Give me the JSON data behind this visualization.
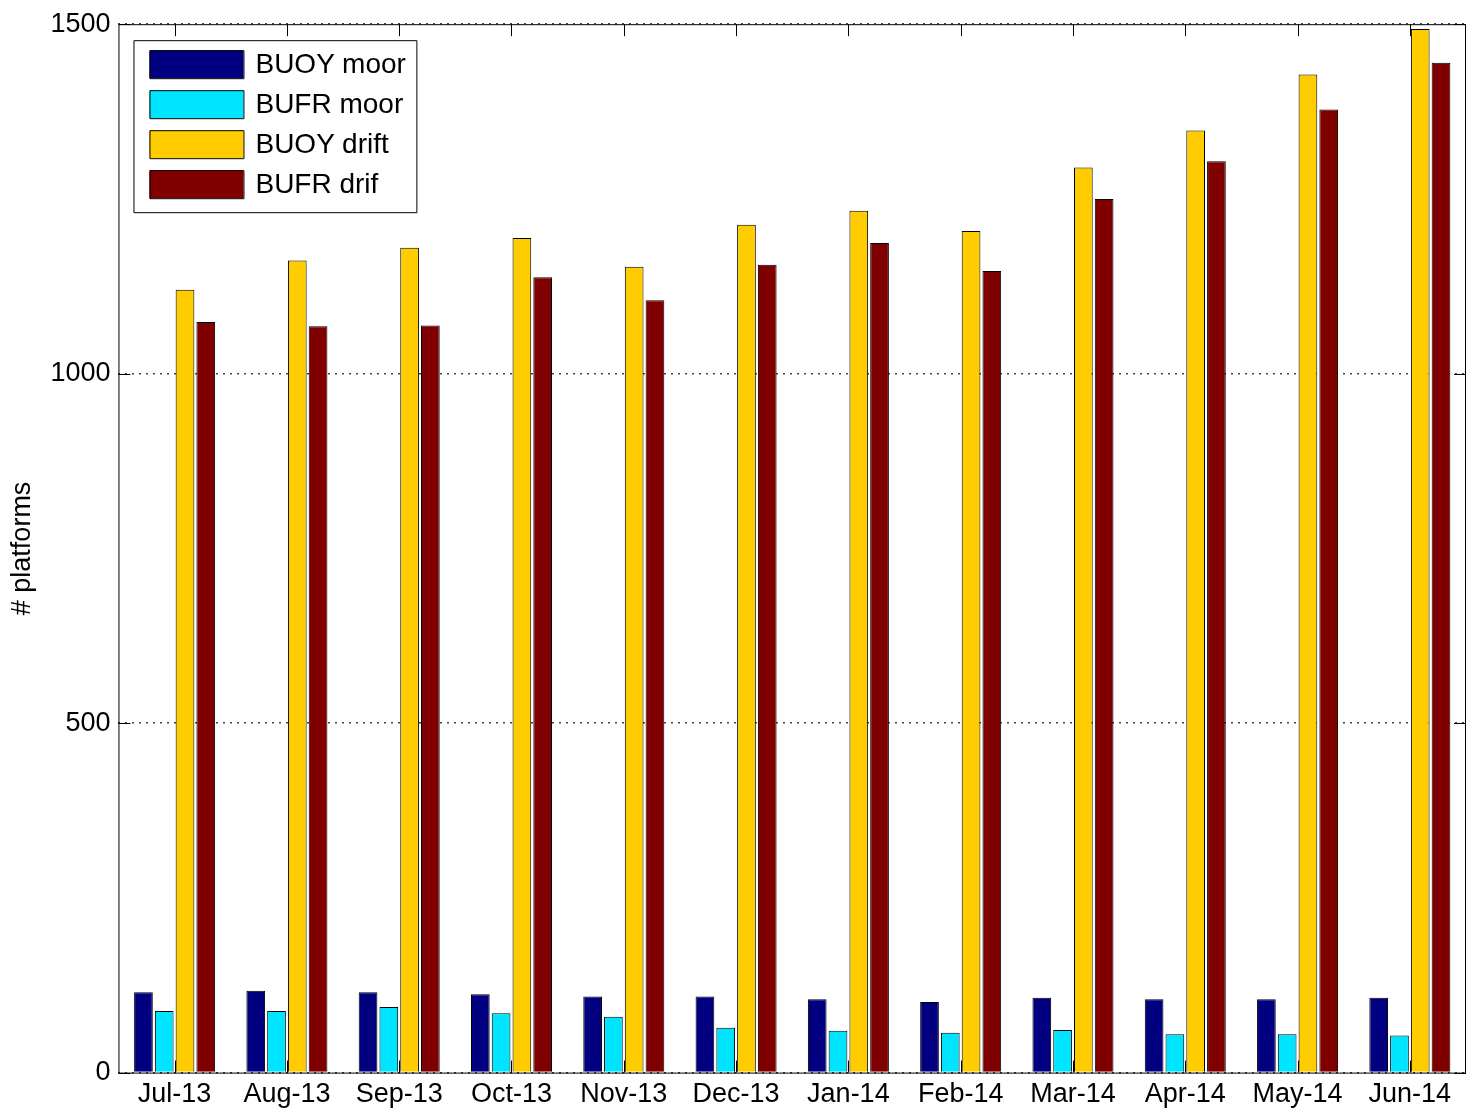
{
  "chart_data": {
    "type": "bar",
    "ylabel": "# platforms",
    "categories": [
      "Jul-13",
      "Aug-13",
      "Sep-13",
      "Oct-13",
      "Nov-13",
      "Dec-13",
      "Jan-14",
      "Feb-14",
      "Mar-14",
      "Apr-14",
      "May-14",
      "Jun-14"
    ],
    "series": [
      {
        "name": "BUOY moor",
        "color": "#000080",
        "values": [
          115,
          117,
          115,
          112,
          109,
          109,
          105,
          101,
          107,
          105,
          105,
          107
        ]
      },
      {
        "name": "BUFR moor",
        "color": "#00e5ff",
        "values": [
          88,
          88,
          94,
          85,
          80,
          64,
          60,
          57,
          61,
          55,
          55,
          53
        ]
      },
      {
        "name": "BUOY drift",
        "color": "#ffcc00",
        "values": [
          1120,
          1162,
          1180,
          1194,
          1153,
          1213,
          1233,
          1204,
          1295,
          1348,
          1428,
          1493
        ]
      },
      {
        "name": "BUFR drif",
        "color": "#800000",
        "values": [
          1074,
          1068,
          1069,
          1138,
          1105,
          1156,
          1187,
          1147,
          1250,
          1304,
          1378,
          1445
        ]
      }
    ],
    "ylim": [
      0,
      1500
    ],
    "yticks": [
      0,
      500,
      1000,
      1500
    ],
    "grid": "y",
    "legend": "top left"
  }
}
